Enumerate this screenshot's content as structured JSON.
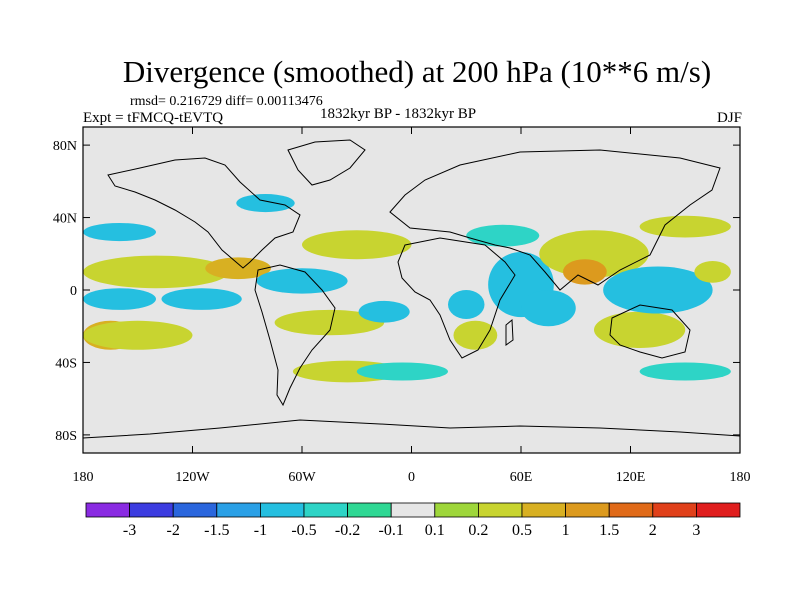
{
  "title": "Divergence (smoothed) at 200 hPa (10**6 m/s)",
  "stats": "rmsd= 0.216729 diff= 0.00113476",
  "experiment": "Expt = tFMCQ-tEVTQ",
  "period": "1832kyr BP - 1832kyr BP",
  "season": "DJF",
  "chart_data": {
    "type": "heatmap",
    "map_projection": "cylindrical-equidistant",
    "lon_range": [
      -180,
      180
    ],
    "lat_range": [
      -90,
      90
    ],
    "x_ticks": [
      {
        "lon": -180,
        "label": "180"
      },
      {
        "lon": -120,
        "label": "120W"
      },
      {
        "lon": -60,
        "label": "60W"
      },
      {
        "lon": 0,
        "label": "0"
      },
      {
        "lon": 60,
        "label": "60E"
      },
      {
        "lon": 120,
        "label": "120E"
      },
      {
        "lon": 180,
        "label": "180"
      }
    ],
    "y_ticks": [
      {
        "lat": 80,
        "label": "80N"
      },
      {
        "lat": 40,
        "label": "40N"
      },
      {
        "lat": 0,
        "label": "0"
      },
      {
        "lat": -40,
        "label": "40S"
      },
      {
        "lat": -80,
        "label": "80S"
      }
    ],
    "colorbar": {
      "colors": [
        "#8a2be2",
        "#3c3ce0",
        "#2a66dd",
        "#2aa0e6",
        "#25bfe0",
        "#2ed4c6",
        "#2fd894",
        "#e6e6e6",
        "#9ed63a",
        "#c8d430",
        "#d8b022",
        "#dc9a1e",
        "#e06a18",
        "#e0401a",
        "#e01e1e"
      ],
      "labels": [
        "-3",
        "-2",
        "-1.5",
        "-1",
        "-0.5",
        "-0.2",
        "-0.1",
        "0.1",
        "0.2",
        "0.5",
        "1",
        "1.5",
        "2",
        "3"
      ]
    },
    "anomalies": [
      {
        "lon": -140,
        "lat": 10,
        "rx": 40,
        "ry": 9,
        "level": "0.5"
      },
      {
        "lon": -95,
        "lat": 12,
        "rx": 18,
        "ry": 6,
        "level": "1"
      },
      {
        "lon": -165,
        "lat": -25,
        "rx": 15,
        "ry": 8,
        "level": "1"
      },
      {
        "lon": -150,
        "lat": -25,
        "rx": 30,
        "ry": 8,
        "level": "0.5"
      },
      {
        "lon": -160,
        "lat": -5,
        "rx": 20,
        "ry": 6,
        "level": "-0.5"
      },
      {
        "lon": -115,
        "lat": -5,
        "rx": 22,
        "ry": 6,
        "level": "-0.5"
      },
      {
        "lon": -30,
        "lat": 25,
        "rx": 30,
        "ry": 8,
        "level": "0.5"
      },
      {
        "lon": -45,
        "lat": -18,
        "rx": 30,
        "ry": 7,
        "level": "0.5"
      },
      {
        "lon": -60,
        "lat": 5,
        "rx": 25,
        "ry": 7,
        "level": "-0.5"
      },
      {
        "lon": -160,
        "lat": 32,
        "rx": 20,
        "ry": 5,
        "level": "-0.5"
      },
      {
        "lon": -80,
        "lat": 48,
        "rx": 16,
        "ry": 5,
        "level": "-0.5"
      },
      {
        "lon": -15,
        "lat": -12,
        "rx": 14,
        "ry": 6,
        "level": "-0.5"
      },
      {
        "lon": -35,
        "lat": -45,
        "rx": 30,
        "ry": 6,
        "level": "0.5"
      },
      {
        "lon": 60,
        "lat": 3,
        "rx": 18,
        "ry": 18,
        "level": "-0.5"
      },
      {
        "lon": 75,
        "lat": -10,
        "rx": 15,
        "ry": 10,
        "level": "-0.5"
      },
      {
        "lon": 100,
        "lat": 20,
        "rx": 30,
        "ry": 13,
        "level": "0.5"
      },
      {
        "lon": 95,
        "lat": 10,
        "rx": 12,
        "ry": 7,
        "level": "1.5"
      },
      {
        "lon": 125,
        "lat": -22,
        "rx": 25,
        "ry": 10,
        "level": "0.5"
      },
      {
        "lon": 135,
        "lat": 0,
        "rx": 30,
        "ry": 13,
        "level": "-0.5"
      },
      {
        "lon": 150,
        "lat": 35,
        "rx": 25,
        "ry": 6,
        "level": "0.5"
      },
      {
        "lon": 35,
        "lat": -25,
        "rx": 12,
        "ry": 8,
        "level": "0.5"
      },
      {
        "lon": 30,
        "lat": -8,
        "rx": 10,
        "ry": 8,
        "level": "-0.5"
      },
      {
        "lon": 50,
        "lat": 30,
        "rx": 20,
        "ry": 6,
        "level": "-0.2"
      },
      {
        "lon": 150,
        "lat": -45,
        "rx": 25,
        "ry": 5,
        "level": "-0.2"
      },
      {
        "lon": -5,
        "lat": -45,
        "rx": 25,
        "ry": 5,
        "level": "-0.2"
      },
      {
        "lon": 165,
        "lat": 10,
        "rx": 10,
        "ry": 6,
        "level": "0.5"
      }
    ]
  }
}
